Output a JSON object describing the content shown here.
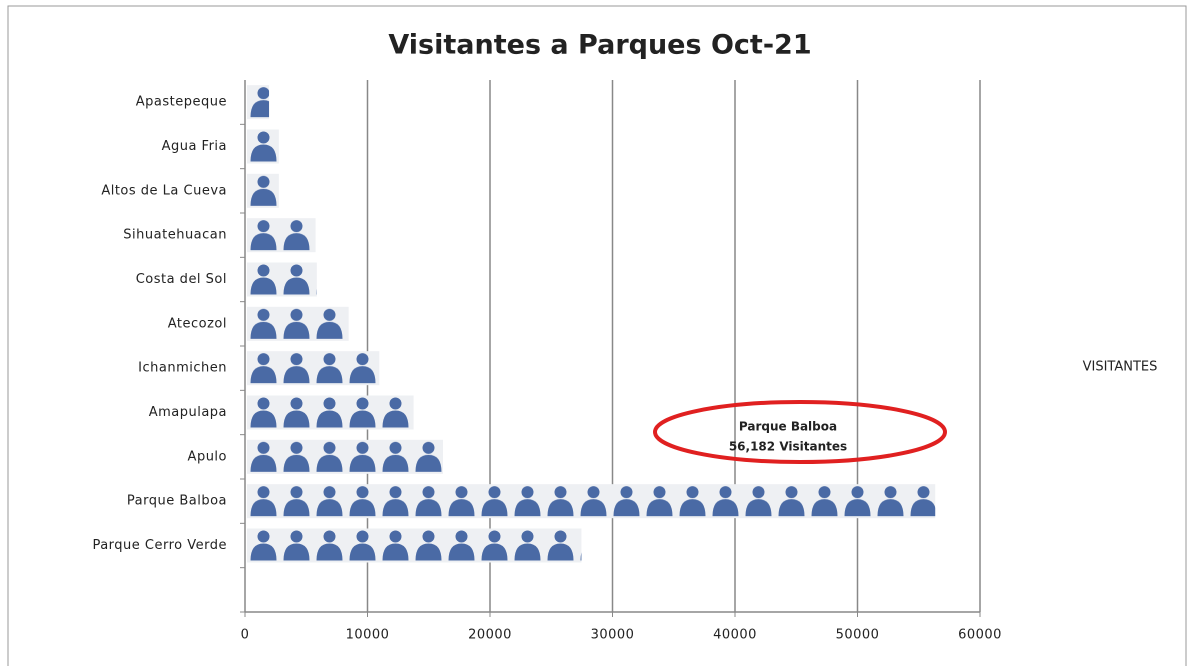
{
  "chart_data": {
    "type": "bar",
    "orientation": "horizontal",
    "title": "Visitantes a Parques Oct-21",
    "categories": [
      "Apastepeque",
      "Agua Fria",
      "Altos de La Cueva",
      "Sihuatehuacan",
      "Costa del Sol",
      "Atecozol",
      "Ichanmichen",
      "Amapulapa",
      "Apulo",
      "Parque Balboa",
      "Parque Cerro Verde",
      null
    ],
    "series": [
      {
        "name": "VISITANTES",
        "color": "#4a6aa5",
        "values": [
          1800,
          2600,
          2600,
          5600,
          5700,
          8300,
          10800,
          13600,
          16000,
          56182,
          27300,
          null
        ]
      }
    ],
    "xlim": [
      0,
      60000
    ],
    "xticks": [
      0,
      10000,
      20000,
      30000,
      40000,
      50000,
      60000
    ],
    "grid": true,
    "legend": "right",
    "annotations": [
      {
        "lines": [
          "Parque Balboa",
          "56,182 Visitantes"
        ]
      }
    ]
  }
}
